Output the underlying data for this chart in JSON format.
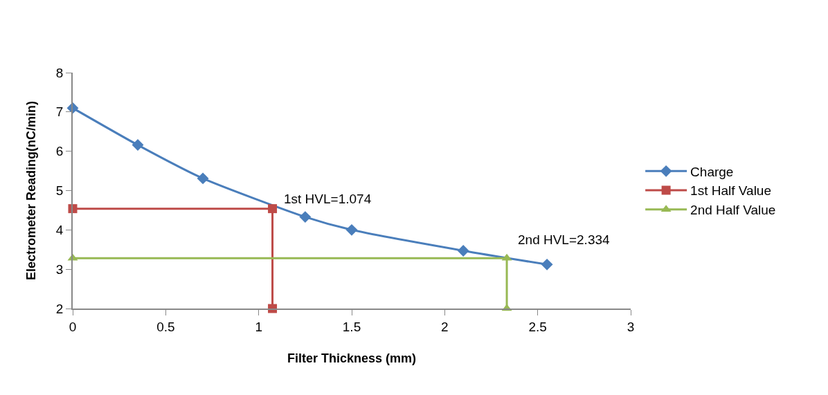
{
  "chart_data": {
    "type": "line",
    "xlabel": "Filter Thickness (mm)",
    "ylabel": "Electrometer Reading(nC/min)",
    "series": [
      {
        "name": "Charge",
        "color": "#4a7ebb",
        "marker": "diamond",
        "x": [
          0,
          0.35,
          0.7,
          1.25,
          1.5,
          2.1,
          2.55
        ],
        "values": [
          7.1,
          6.16,
          5.31,
          4.33,
          4.0,
          3.47,
          3.12
        ]
      },
      {
        "name": "1st Half Value",
        "color": "#be4b48",
        "marker": "square",
        "x": [
          0,
          1.074,
          1.074
        ],
        "values": [
          4.54,
          4.54,
          2
        ]
      },
      {
        "name": "2nd Half Value",
        "color": "#98b954",
        "marker": "triangle",
        "x": [
          0,
          2.334,
          2.334
        ],
        "values": [
          3.28,
          3.28,
          2
        ]
      }
    ],
    "annotations": [
      {
        "text": "1st HVL=1.074",
        "x": 1.074,
        "y": 4.54
      },
      {
        "text": "2nd HVL=2.334",
        "x": 2.334,
        "y": 3.28
      }
    ],
    "xlim": [
      0,
      3
    ],
    "xticks": [
      0,
      0.5,
      1,
      1.5,
      2,
      2.5,
      3
    ],
    "ylim": [
      2,
      8
    ],
    "yticks": [
      2,
      3,
      4,
      5,
      6,
      7,
      8
    ],
    "legend": "right",
    "line_style": "solid"
  }
}
